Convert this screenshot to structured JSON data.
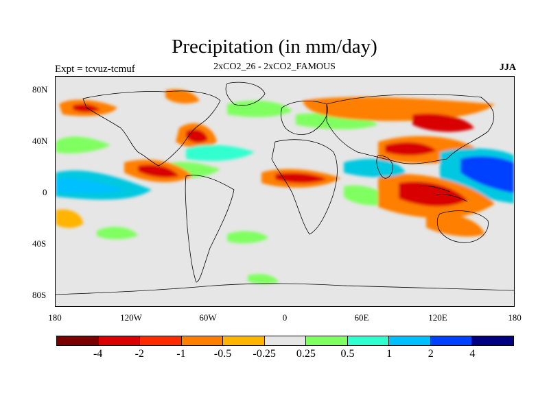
{
  "title": "Precipitation (in mm/day)",
  "subtitle": "2xCO2_26 - 2xCO2_FAMOUS",
  "left_string": "Expt = tcvuz-tcmuf",
  "right_string": "JJA",
  "lat_ticks": [
    "80N",
    "40N",
    "0",
    "40S",
    "80S"
  ],
  "lon_ticks": [
    "180",
    "120W",
    "60W",
    "0",
    "60E",
    "120E",
    "180"
  ],
  "colors": {
    "map_background": "#e6e6e6",
    "dry_strong": "#d80000",
    "dry": "#ff7f00",
    "wet": "#00c8e0",
    "wet_strong": "#0040ff"
  },
  "colorbar": {
    "colors": [
      "#7a0000",
      "#d80000",
      "#ff2a00",
      "#ff7f00",
      "#ffb400",
      "#e6e6e6",
      "#80ff60",
      "#30ffd0",
      "#00c0ff",
      "#0040ff",
      "#000080"
    ],
    "labels": [
      "-4",
      "-2",
      "-1",
      "-0.5",
      "-0.25",
      "0.25",
      "0.5",
      "1",
      "2",
      "4"
    ]
  }
}
